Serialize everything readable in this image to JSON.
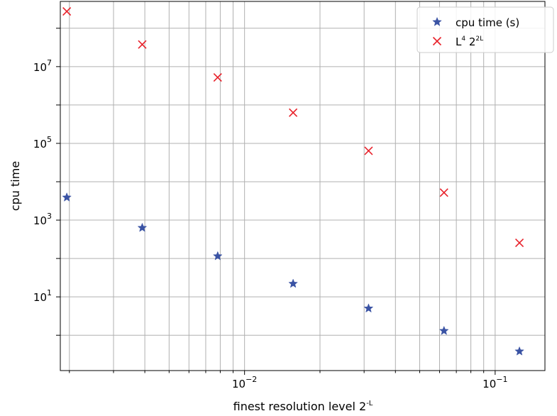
{
  "chart_data": {
    "type": "scatter",
    "xscale": "log",
    "yscale": "log",
    "xlabel": "finest resolution level 2",
    "xlabel_sup": "-L",
    "ylabel": "cpu time",
    "xlim": [
      0.00184,
      0.158
    ],
    "ylim": [
      0.12,
      500000000
    ],
    "grid": true,
    "legend_position": "top-right",
    "x_ticks": [
      {
        "value": 0.01,
        "base": "10",
        "exp": "−2"
      },
      {
        "value": 0.1,
        "base": "10",
        "exp": "−1"
      }
    ],
    "y_ticks": [
      {
        "value": 10,
        "base": "10",
        "exp": "1"
      },
      {
        "value": 1000,
        "base": "10",
        "exp": "3"
      },
      {
        "value": 100000,
        "base": "10",
        "exp": "5"
      },
      {
        "value": 10000000,
        "base": "10",
        "exp": "7"
      }
    ],
    "series": [
      {
        "name": "cpu time (s)",
        "marker": "star",
        "color": "#3a53a4",
        "x": [
          0.001953,
          0.003906,
          0.007813,
          0.015625,
          0.03125,
          0.0625,
          0.125
        ],
        "y": [
          3900,
          630,
          115,
          22,
          5,
          1.3,
          0.38
        ]
      },
      {
        "name": "L",
        "name_sup1": "4",
        "name_mid": " 2",
        "name_sup2": "2L",
        "marker": "x",
        "color": "#e8212a",
        "x": [
          0.001953,
          0.003906,
          0.007813,
          0.015625,
          0.03125,
          0.0625,
          0.125
        ],
        "y": [
          275000000,
          37700000,
          5240000,
          630000,
          64000,
          5200,
          256
        ]
      }
    ]
  }
}
